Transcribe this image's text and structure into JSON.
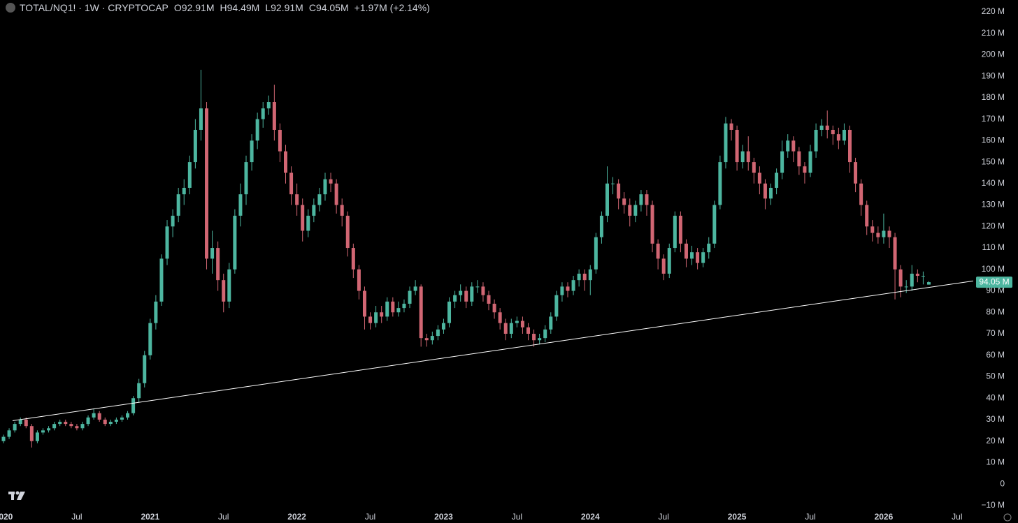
{
  "header": {
    "symbol": "TOTAL/NQ1! · 1W · CRYPTOCAP",
    "o_key": "O",
    "o": "92.91M",
    "h_key": "H",
    "h": "94.49M",
    "l_key": "L",
    "l": "92.91M",
    "c_key": "C",
    "c": "94.05M",
    "change": "+1.97M (+2.14%)"
  },
  "chart_data": {
    "type": "candlestick",
    "up_color": "#4db6a0",
    "down_color": "#d16673",
    "grid": false,
    "ylim": [
      -13.6,
      225.5
    ],
    "yticks": [
      {
        "value": -10,
        "label": "−10 M"
      },
      0,
      {
        "value": 10,
        "label": "10 M"
      },
      {
        "value": 20,
        "label": "20 M"
      },
      {
        "value": 30,
        "label": "30 M"
      },
      {
        "value": 40,
        "label": "40 M"
      },
      {
        "value": 50,
        "label": "50 M"
      },
      {
        "value": 60,
        "label": "60 M"
      },
      {
        "value": 70,
        "label": "70 M"
      },
      {
        "value": 80,
        "label": "80 M"
      },
      {
        "value": 90,
        "label": "90 M"
      },
      {
        "value": 100,
        "label": "100 M"
      },
      {
        "value": 110,
        "label": "110 M"
      },
      {
        "value": 120,
        "label": "120 M"
      },
      {
        "value": 130,
        "label": "130 M"
      },
      {
        "value": 140,
        "label": "140 M"
      },
      {
        "value": 150,
        "label": "150 M"
      },
      {
        "value": 160,
        "label": "160 M"
      },
      {
        "value": 170,
        "label": "170 M"
      },
      {
        "value": 180,
        "label": "180 M"
      },
      {
        "value": 190,
        "label": "190 M"
      },
      {
        "value": 200,
        "label": "200 M"
      },
      {
        "value": 210,
        "label": "210 M"
      },
      {
        "value": 220,
        "label": "220 M"
      }
    ],
    "categories": [
      "2020",
      null,
      null,
      null,
      null,
      null,
      null,
      null,
      null,
      null,
      null,
      null,
      null,
      "Jul",
      null,
      null,
      null,
      null,
      null,
      null,
      null,
      null,
      null,
      null,
      null,
      null,
      "2021",
      null,
      null,
      null,
      null,
      null,
      null,
      null,
      null,
      null,
      null,
      null,
      null,
      "Jul",
      null,
      null,
      null,
      null,
      null,
      null,
      null,
      null,
      null,
      null,
      null,
      null,
      "2022",
      null,
      null,
      null,
      null,
      null,
      null,
      null,
      null,
      null,
      null,
      null,
      null,
      "Jul",
      null,
      null,
      null,
      null,
      null,
      null,
      null,
      null,
      null,
      null,
      null,
      null,
      "2023",
      null,
      null,
      null,
      null,
      null,
      null,
      null,
      null,
      null,
      null,
      null,
      null,
      "Jul",
      null,
      null,
      null,
      null,
      null,
      null,
      null,
      null,
      null,
      null,
      null,
      null,
      "2024",
      null,
      null,
      null,
      null,
      null,
      null,
      null,
      null,
      null,
      null,
      null,
      null,
      "Jul",
      null,
      null,
      null,
      null,
      null,
      null,
      null,
      null,
      null,
      null,
      null,
      null,
      "2025",
      null,
      null,
      null,
      null,
      null,
      null,
      null,
      null,
      null,
      null,
      null,
      null,
      "Jul",
      null,
      null,
      null,
      null,
      null,
      null,
      null,
      null,
      null,
      null,
      null,
      null,
      "2026",
      null,
      null,
      null,
      null,
      null,
      null,
      null,
      null,
      null,
      null,
      null,
      null,
      "Jul",
      null
    ],
    "open": [
      20,
      22,
      25,
      28,
      30,
      27,
      20,
      24,
      25,
      26,
      28,
      29,
      28,
      27,
      26,
      28,
      31,
      33,
      30,
      28,
      29,
      30,
      31,
      33,
      40,
      47,
      60,
      75,
      85,
      105,
      120,
      125,
      135,
      138,
      150,
      165,
      175,
      105,
      110,
      95,
      85,
      100,
      125,
      135,
      150,
      160,
      170,
      175,
      178,
      165,
      155,
      145,
      135,
      130,
      118,
      125,
      130,
      135,
      142,
      140,
      130,
      125,
      110,
      100,
      90,
      78,
      75,
      80,
      78,
      85,
      80,
      82,
      84,
      90,
      92,
      68,
      67,
      69,
      72,
      75,
      85,
      88,
      90,
      85,
      92,
      92,
      88,
      84,
      80,
      75,
      70,
      75,
      76,
      73,
      70,
      67,
      68,
      72,
      78,
      88,
      92,
      90,
      95,
      98,
      95,
      100,
      115,
      125,
      140,
      140,
      133,
      130,
      125,
      130,
      135,
      130,
      112,
      105,
      98,
      110,
      125,
      112,
      105,
      108,
      103,
      108,
      112,
      130,
      150,
      168,
      165,
      150,
      155,
      150,
      145,
      140,
      133,
      138,
      145,
      155,
      160,
      155,
      148,
      145,
      155,
      165,
      167,
      165,
      163,
      160,
      165,
      150,
      140,
      130,
      120,
      117,
      115,
      118,
      115,
      100,
      92,
      92,
      98,
      97,
      92.91,
      null,
      null,
      null,
      null,
      null,
      null
    ],
    "high": [
      23,
      26,
      29,
      31,
      31,
      28,
      25,
      26,
      27,
      29,
      30,
      30,
      29,
      28,
      29,
      32,
      35,
      34,
      31,
      30,
      31,
      32,
      34,
      41,
      49,
      62,
      77,
      88,
      107,
      123,
      128,
      138,
      142,
      153,
      170,
      193,
      178,
      118,
      113,
      98,
      103,
      128,
      140,
      153,
      163,
      173,
      178,
      181,
      186,
      168,
      158,
      148,
      140,
      133,
      128,
      133,
      138,
      145,
      145,
      142,
      133,
      127,
      112,
      102,
      92,
      80,
      83,
      83,
      87,
      87,
      85,
      86,
      92,
      95,
      93,
      70,
      71,
      74,
      77,
      87,
      90,
      93,
      92,
      94,
      95,
      94,
      90,
      86,
      82,
      77,
      77,
      78,
      78,
      75,
      72,
      70,
      74,
      80,
      90,
      94,
      94,
      97,
      100,
      100,
      102,
      117,
      127,
      148,
      143,
      142,
      136,
      133,
      132,
      137,
      137,
      132,
      114,
      107,
      112,
      127,
      127,
      114,
      111,
      110,
      110,
      115,
      132,
      153,
      171,
      170,
      167,
      158,
      162,
      152,
      148,
      142,
      140,
      147,
      160,
      163,
      162,
      157,
      150,
      158,
      168,
      170,
      174,
      167,
      166,
      168,
      167,
      152,
      142,
      132,
      123,
      120,
      126,
      120,
      117,
      102,
      95,
      102,
      100,
      99,
      94.49,
      null,
      null,
      null,
      null,
      null,
      null
    ],
    "low": [
      19,
      21,
      24,
      27,
      26,
      17,
      19,
      23,
      24,
      25,
      27,
      27,
      26,
      25,
      25,
      27,
      30,
      29,
      27,
      27,
      28,
      29,
      30,
      32,
      38,
      45,
      58,
      72,
      83,
      102,
      115,
      122,
      130,
      135,
      147,
      160,
      100,
      98,
      90,
      80,
      82,
      98,
      120,
      130,
      146,
      156,
      166,
      172,
      160,
      150,
      140,
      130,
      125,
      113,
      115,
      122,
      127,
      132,
      136,
      126,
      120,
      106,
      96,
      86,
      72,
      72,
      73,
      75,
      76,
      78,
      78,
      80,
      82,
      88,
      64,
      64,
      65,
      67,
      70,
      73,
      82,
      85,
      82,
      83,
      89,
      85,
      81,
      77,
      72,
      67,
      68,
      73,
      70,
      67,
      64,
      65,
      66,
      70,
      76,
      85,
      87,
      88,
      92,
      90,
      88,
      98,
      112,
      122,
      135,
      128,
      126,
      120,
      122,
      127,
      125,
      108,
      100,
      95,
      96,
      108,
      108,
      101,
      102,
      100,
      101,
      105,
      110,
      128,
      147,
      160,
      146,
      147,
      146,
      140,
      135,
      128,
      130,
      135,
      142,
      152,
      150,
      144,
      140,
      143,
      152,
      162,
      161,
      158,
      156,
      158,
      145,
      136,
      125,
      116,
      113,
      112,
      112,
      110,
      86,
      87,
      89,
      90,
      94,
      93,
      92.91,
      null,
      null,
      null,
      null,
      null,
      null
    ],
    "close": [
      22,
      25,
      28,
      30,
      27,
      20,
      24,
      25,
      26,
      28,
      29,
      28,
      27,
      26,
      28,
      31,
      33,
      30,
      28,
      29,
      30,
      31,
      33,
      40,
      47,
      60,
      75,
      85,
      105,
      120,
      125,
      135,
      138,
      150,
      165,
      175,
      105,
      110,
      95,
      85,
      100,
      125,
      135,
      150,
      160,
      170,
      175,
      178,
      165,
      155,
      145,
      135,
      130,
      118,
      125,
      130,
      135,
      142,
      140,
      130,
      125,
      110,
      100,
      90,
      78,
      75,
      80,
      78,
      85,
      80,
      82,
      84,
      90,
      92,
      68,
      67,
      69,
      72,
      75,
      85,
      88,
      90,
      85,
      92,
      92,
      88,
      84,
      80,
      75,
      70,
      75,
      76,
      73,
      70,
      67,
      68,
      72,
      78,
      88,
      92,
      90,
      95,
      98,
      95,
      100,
      115,
      125,
      140,
      140,
      133,
      130,
      125,
      130,
      135,
      130,
      112,
      105,
      98,
      110,
      125,
      112,
      105,
      108,
      103,
      108,
      112,
      130,
      150,
      168,
      165,
      150,
      155,
      150,
      145,
      140,
      133,
      138,
      145,
      155,
      160,
      155,
      148,
      145,
      155,
      165,
      167,
      165,
      163,
      160,
      165,
      150,
      140,
      130,
      120,
      117,
      115,
      118,
      115,
      100,
      92,
      92,
      98,
      97,
      97,
      94.05,
      null,
      null,
      null,
      null,
      null,
      null
    ],
    "last_label": "94.05 M",
    "trendline": {
      "values": [
        29.5,
        94.6
      ],
      "color": "#ffffff"
    }
  }
}
